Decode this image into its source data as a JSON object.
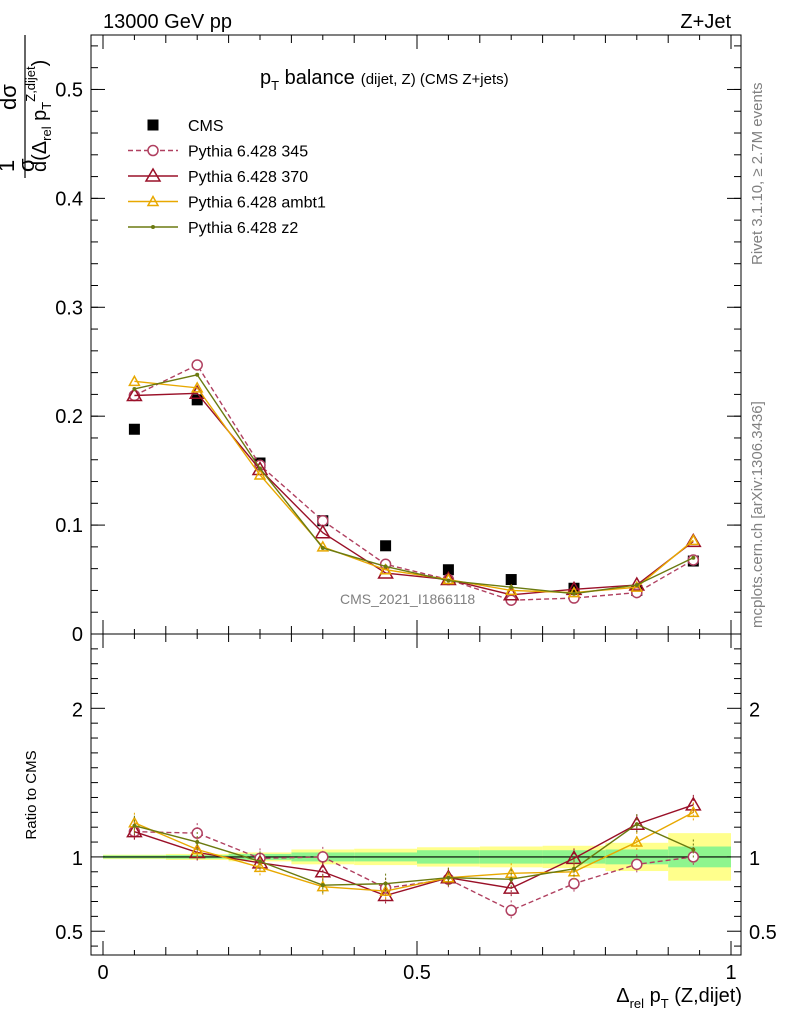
{
  "header": {
    "left": "13000 GeV pp",
    "right": "Z+Jet"
  },
  "side": {
    "rivet": "Rivet 3.1.10, ≥ 2.7M events",
    "mcplots": "mcplots.cern.ch [arXiv:1306.3436]"
  },
  "watermark": "CMS_2021_I1866118",
  "colors": {
    "cms": "#000000",
    "p345": "#b04060",
    "p370": "#9a1028",
    "ambt1": "#e8a800",
    "z2": "#6b7a10",
    "band_green": "#8ef58e",
    "band_yellow": "#ffff8c"
  },
  "chart_data": [
    {
      "type": "scatter",
      "panel": "main",
      "title": "p_T balance (dijet, Z) (CMS Z+jets)",
      "title_parts": {
        "main": "p",
        "sub": "T",
        "rest": " balance",
        "small": "(dijet, Z) (CMS Z+jets)"
      },
      "ylabel": "1/σ dσ/d(Δ_rel p_T^Z,dijet)",
      "ylabel_parts": {
        "one": "1",
        "sigma": "σ",
        "dsigma": "dσ",
        "denom": "d(Δ",
        "rel": "rel",
        "p": " p",
        "T": "T",
        "sup": "Z,dijet",
        "close": ")"
      },
      "xlim": [
        0,
        1
      ],
      "ylim": [
        0,
        0.55
      ],
      "yticks": [
        0,
        0.1,
        0.2,
        0.3,
        0.4,
        0.5
      ],
      "ytick_labels": [
        "0",
        "0.1",
        "0.2",
        "0.3",
        "0.4",
        "0.5"
      ],
      "legend_position": "top-left",
      "x": [
        0.05,
        0.15,
        0.25,
        0.35,
        0.45,
        0.55,
        0.65,
        0.75,
        0.85,
        0.94
      ],
      "series": [
        {
          "name": "CMS",
          "values": [
            0.188,
            0.215,
            0.157,
            0.104,
            0.081,
            0.059,
            0.05,
            0.042,
            0.04,
            0.067
          ]
        },
        {
          "name": "Pythia 6.428 345",
          "values": [
            0.219,
            0.247,
            0.155,
            0.104,
            0.064,
            0.05,
            0.031,
            0.033,
            0.038,
            0.068
          ]
        },
        {
          "name": "Pythia 6.428 370",
          "values": [
            0.219,
            0.221,
            0.151,
            0.093,
            0.056,
            0.05,
            0.036,
            0.041,
            0.045,
            0.085
          ]
        },
        {
          "name": "Pythia 6.428 ambt1",
          "values": [
            0.232,
            0.226,
            0.146,
            0.08,
            0.059,
            0.05,
            0.04,
            0.038,
            0.043,
            0.086
          ]
        },
        {
          "name": "Pythia 6.428 z2",
          "values": [
            0.225,
            0.238,
            0.152,
            0.079,
            0.062,
            0.049,
            0.043,
            0.037,
            0.045,
            0.07
          ]
        }
      ]
    },
    {
      "type": "line",
      "panel": "ratio",
      "ylabel": "Ratio to CMS",
      "xlabel": "Δ_rel p_T (Z,dijet)",
      "xlabel_parts": {
        "delta": "Δ",
        "rel": "rel",
        "p": " p",
        "T": "T",
        "rest": " (Z,dijet)"
      },
      "xlim": [
        0,
        1
      ],
      "ylim": [
        0.34,
        2.5
      ],
      "yticks": [
        0.5,
        1,
        2
      ],
      "ytick_labels": [
        "0.5",
        "1",
        "2"
      ],
      "xticks": [
        0,
        0.5,
        1
      ],
      "xtick_labels": [
        "0",
        "0.5",
        "1"
      ],
      "x": [
        0.05,
        0.15,
        0.25,
        0.35,
        0.45,
        0.55,
        0.65,
        0.75,
        0.85,
        0.94
      ],
      "bands": {
        "edges": [
          0,
          0.1,
          0.2,
          0.3,
          0.4,
          0.5,
          0.6,
          0.7,
          0.8,
          0.9,
          1.0
        ],
        "green_half": [
          0.01,
          0.012,
          0.02,
          0.03,
          0.03,
          0.045,
          0.045,
          0.045,
          0.05,
          0.07
        ],
        "yellow_half": [
          0.015,
          0.02,
          0.03,
          0.05,
          0.055,
          0.065,
          0.07,
          0.075,
          0.095,
          0.16
        ]
      },
      "series": [
        {
          "name": "Pythia 6.428 345",
          "values": [
            1.17,
            1.16,
            0.99,
            1.0,
            0.79,
            0.85,
            0.64,
            0.82,
            0.95,
            1.0
          ]
        },
        {
          "name": "Pythia 6.428 370",
          "values": [
            1.17,
            1.03,
            0.96,
            0.9,
            0.74,
            0.86,
            0.79,
            0.99,
            1.22,
            1.35
          ]
        },
        {
          "name": "Pythia 6.428 ambt1",
          "values": [
            1.23,
            1.05,
            0.93,
            0.8,
            0.77,
            0.86,
            0.89,
            0.9,
            1.1,
            1.3
          ]
        },
        {
          "name": "Pythia 6.428 z2",
          "values": [
            1.21,
            1.1,
            0.97,
            0.81,
            0.82,
            0.86,
            0.85,
            0.92,
            1.22,
            1.05
          ]
        }
      ]
    }
  ]
}
